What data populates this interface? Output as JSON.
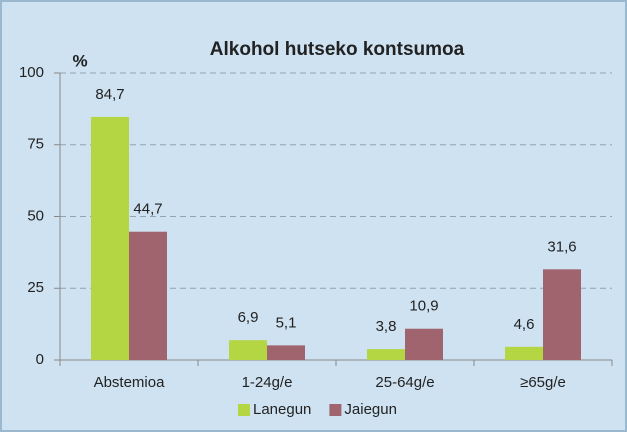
{
  "chart_data": {
    "type": "bar",
    "title": "Alkohol hutseko kontsumoa",
    "ylabel": "%",
    "categories": [
      "Abstemioa",
      "1-24g/e",
      "25-64g/e",
      "≥65g/e"
    ],
    "series": [
      {
        "name": "Lanegun",
        "color": "#b3d642",
        "values": [
          84.7,
          6.9,
          3.8,
          4.6
        ],
        "value_labels": [
          "84,7",
          "6,9",
          "3,8",
          "4,6"
        ]
      },
      {
        "name": "Jaiegun",
        "color": "#a0646f",
        "values": [
          44.7,
          5.1,
          10.9,
          31.6
        ],
        "value_labels": [
          "44,7",
          "5,1",
          "10,9",
          "31,6"
        ]
      }
    ],
    "ylim": [
      0,
      100
    ],
    "yticks": [
      0,
      25,
      50,
      75,
      100
    ],
    "grid": true,
    "legend": "bottom"
  }
}
